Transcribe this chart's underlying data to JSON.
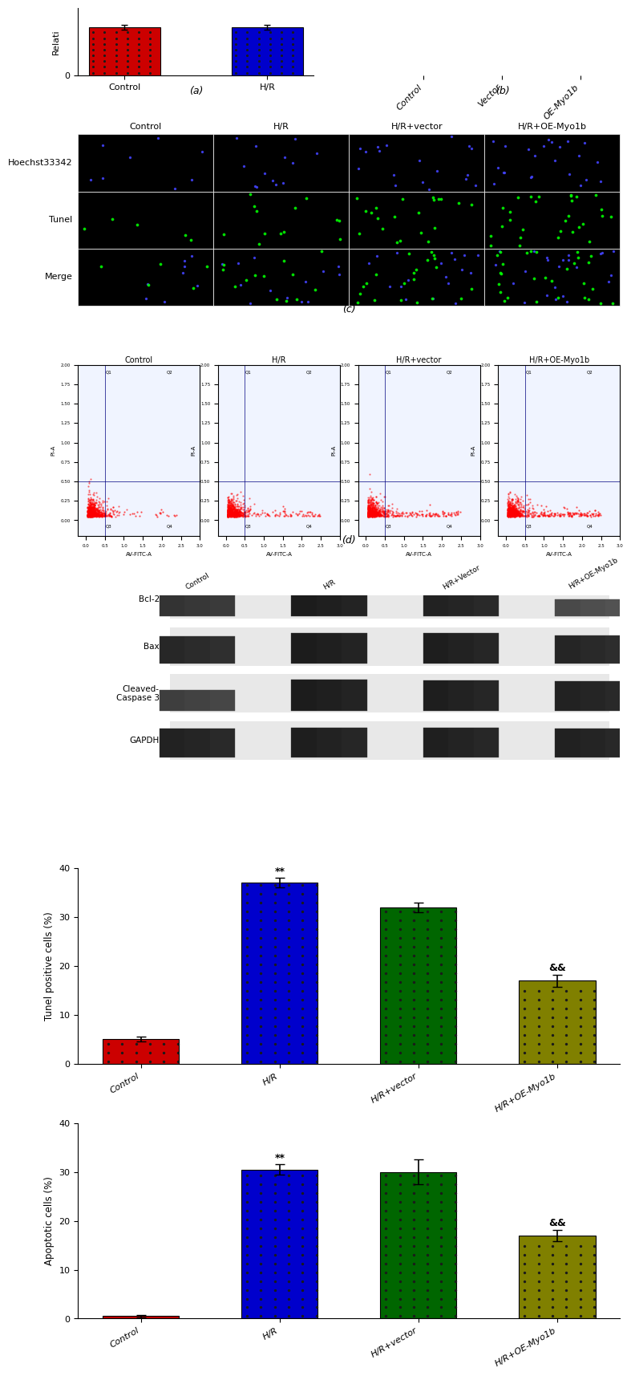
{
  "panel_a": {
    "categories": [
      "Control",
      "H/R"
    ],
    "values": [
      1.0,
      1.0
    ],
    "errors": [
      0.05,
      0.05
    ],
    "colors": [
      "#CC0000",
      "#0000CC"
    ],
    "ylabel": "Relati",
    "ylim": [
      0.0,
      1.4
    ],
    "label": "(a)"
  },
  "panel_b": {
    "categories": [
      "Control",
      "Vector",
      "OE-Myo1b"
    ],
    "label": "(b)"
  },
  "panel_c": {
    "rows": [
      "Hoechst33342",
      "Tunel",
      "Merge"
    ],
    "cols": [
      "Control",
      "H/R",
      "H/R+vector",
      "H/R+OE-Myo1b"
    ],
    "label": "(c)"
  },
  "panel_d": {
    "label": "(d)"
  },
  "panel_e": {
    "western_proteins": [
      "Bcl-2",
      "Bax",
      "Cleaved-\nCaspase 3",
      "GAPDH"
    ],
    "western_cols": [
      "Control",
      "H/R",
      "H/R+Vector",
      "H/R+OE-Myo1b"
    ]
  },
  "panel_tunel": {
    "categories": [
      "Control",
      "H/R",
      "H/R+vector",
      "H/R+OE-Myo1b"
    ],
    "values": [
      5.0,
      37.0,
      32.0,
      17.0
    ],
    "errors": [
      0.5,
      1.0,
      1.0,
      1.2
    ],
    "colors": [
      "#CC0000",
      "#0000CC",
      "#006600",
      "#808000"
    ],
    "ylabel": "Tunel positive cells (%)",
    "ylim": [
      0,
      40
    ],
    "yticks": [
      0,
      10,
      20,
      30,
      40
    ],
    "significance": [
      "",
      "**",
      "",
      "&&"
    ],
    "label": ""
  },
  "panel_apoptosis": {
    "categories": [
      "Control",
      "H/R",
      "H/R+vector",
      "H/R+OE-Myo1b"
    ],
    "values": [
      0.5,
      30.5,
      30.0,
      17.0
    ],
    "errors": [
      0.3,
      1.0,
      2.5,
      1.2
    ],
    "colors": [
      "#CC0000",
      "#0000CC",
      "#006600",
      "#808000"
    ],
    "ylabel": "Apoptotic cells (%)",
    "ylim": [
      0,
      40
    ],
    "yticks": [
      0,
      10,
      20,
      30,
      40
    ],
    "significance": [
      "",
      "**",
      "",
      "&&"
    ],
    "label": ""
  },
  "dot_pattern_size": 2,
  "dot_pattern_color": "#1a1a1a",
  "background_color": "#ffffff"
}
